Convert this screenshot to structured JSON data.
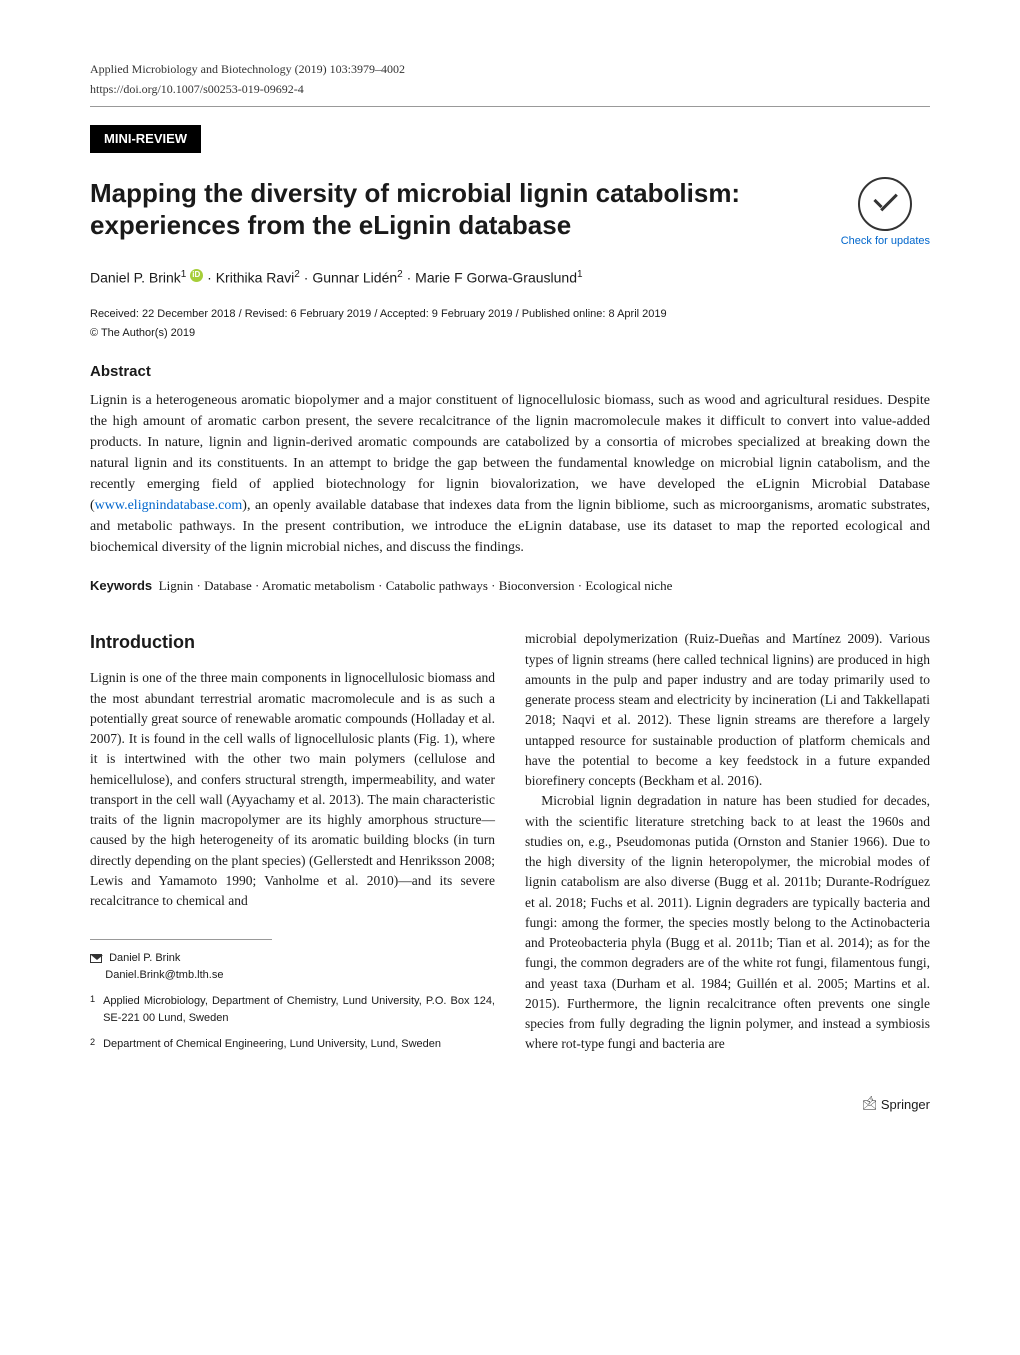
{
  "header": {
    "journal_line": "Applied Microbiology and Biotechnology (2019) 103:3979–4002",
    "doi": "https://doi.org/10.1007/s00253-019-09692-4"
  },
  "section_tag": "MINI-REVIEW",
  "check_updates": "Check for updates",
  "title": "Mapping the diversity of microbial lignin catabolism: experiences from the eLignin database",
  "authors_html": "Daniel P. Brink¹ 🟢 · Krithika Ravi² · Gunnar Lidén² · Marie F Gorwa-Grauslund¹",
  "authors": {
    "a1": "Daniel P. Brink",
    "a1_affil": "1",
    "a2": "Krithika Ravi",
    "a2_affil": "2",
    "a3": "Gunnar Lidén",
    "a3_affil": "2",
    "a4": "Marie F Gorwa-Grauslund",
    "a4_affil": "1"
  },
  "dates": "Received: 22 December 2018 / Revised: 6 February 2019 / Accepted: 9 February 2019 / Published online: 8 April 2019",
  "copyright": "© The Author(s) 2019",
  "abstract": {
    "heading": "Abstract",
    "body_pre": "Lignin is a heterogeneous aromatic biopolymer and a major constituent of lignocellulosic biomass, such as wood and agricultural residues. Despite the high amount of aromatic carbon present, the severe recalcitrance of the lignin macromolecule makes it difficult to convert into value-added products. In nature, lignin and lignin-derived aromatic compounds are catabolized by a consortia of microbes specialized at breaking down the natural lignin and its constituents. In an attempt to bridge the gap between the fundamental knowledge on microbial lignin catabolism, and the recently emerging field of applied biotechnology for lignin biovalorization, we have developed the eLignin Microbial Database (",
    "link_text": "www.elignindatabase.com",
    "body_post": "), an openly available database that indexes data from the lignin bibliome, such as microorganisms, aromatic substrates, and metabolic pathways. In the present contribution, we introduce the eLignin database, use its dataset to map the reported ecological and biochemical diversity of the lignin microbial niches, and discuss the findings."
  },
  "keywords": {
    "label": "Keywords",
    "value": "Lignin · Database · Aromatic metabolism · Catabolic pathways · Bioconversion · Ecological niche"
  },
  "intro": {
    "heading": "Introduction",
    "left_para_1": "Lignin is one of the three main components in lignocellulosic biomass and the most abundant terrestrial aromatic macromolecule and is as such a potentially great source of renewable aromatic compounds (Holladay et al. 2007). It is found in the cell walls of lignocellulosic plants (Fig. 1), where it is intertwined with the other two main polymers (cellulose and hemicellulose), and confers structural strength, impermeability, and water transport in the cell wall (Ayyachamy et al. 2013). The main characteristic traits of the lignin macropolymer are its highly amorphous structure—caused by the high heterogeneity of its aromatic building blocks (in turn directly depending on the plant species) (Gellerstedt and Henriksson 2008; Lewis and Yamamoto 1990; Vanholme et al. 2010)—and its severe recalcitrance to chemical and",
    "right_para_1": "microbial depolymerization (Ruiz-Dueñas and Martínez 2009). Various types of lignin streams (here called technical lignins) are produced in high amounts in the pulp and paper industry and are today primarily used to generate process steam and electricity by incineration (Li and Takkellapati 2018; Naqvi et al. 2012). These lignin streams are therefore a largely untapped resource for sustainable production of platform chemicals and have the potential to become a key feedstock in a future expanded biorefinery concepts (Beckham et al. 2016).",
    "right_para_2": "Microbial lignin degradation in nature has been studied for decades, with the scientific literature stretching back to at least the 1960s and studies on, e.g., Pseudomonas putida (Ornston and Stanier 1966). Due to the high diversity of the lignin heteropolymer, the microbial modes of lignin catabolism are also diverse (Bugg et al. 2011b; Durante-Rodríguez et al. 2018; Fuchs et al. 2011). Lignin degraders are typically bacteria and fungi: among the former, the species mostly belong to the Actinobacteria and Proteobacteria phyla (Bugg et al. 2011b; Tian et al. 2014); as for the fungi, the common degraders are of the white rot fungi, filamentous fungi, and yeast taxa (Durham et al. 1984; Guillén et al. 2005; Martins et al. 2015). Furthermore, the lignin recalcitrance often prevents one single species from fully degrading the lignin polymer, and instead a symbiosis where rot-type fungi and bacteria are"
  },
  "correspondence": {
    "name": "Daniel P. Brink",
    "email": "Daniel.Brink@tmb.lth.se"
  },
  "affiliations": {
    "a1_num": "1",
    "a1": "Applied Microbiology, Department of Chemistry, Lund University, P.O. Box 124, SE-221 00 Lund, Sweden",
    "a2_num": "2",
    "a2": "Department of Chemical Engineering, Lund University, Lund, Sweden"
  },
  "footer": "🖄 Springer",
  "colors": {
    "link": "#0066cc",
    "tag_bg": "#000000",
    "tag_fg": "#ffffff",
    "orcid": "#a6ce39"
  }
}
